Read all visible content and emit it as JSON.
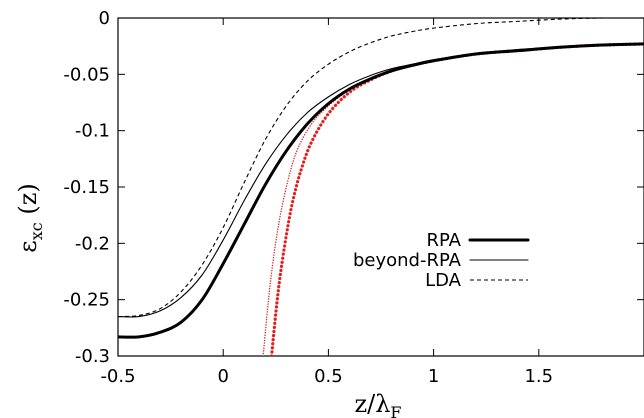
{
  "chart_data": {
    "type": "line",
    "xlabel": {
      "main": "z/λ",
      "sub": "F"
    },
    "ylabel": {
      "main": "ε",
      "sub": "xc",
      "suffix": " (z)"
    },
    "xlim": [
      -0.5,
      2.0
    ],
    "ylim": [
      -0.3,
      0.0
    ],
    "x_ticks": [
      -0.5,
      0,
      0.5,
      1,
      1.5
    ],
    "x_tick_labels": [
      "-0.5",
      "0",
      "0.5",
      "1",
      "1.5"
    ],
    "y_ticks": [
      0,
      -0.05,
      -0.1,
      -0.15,
      -0.2,
      -0.25,
      -0.3
    ],
    "y_tick_labels": [
      "0",
      "-0.05",
      "-0.1",
      "-0.15",
      "-0.2",
      "-0.25",
      "-0.3"
    ],
    "grid": false,
    "legend_position": "middle-right",
    "legend": [
      "RPA",
      "beyond-RPA",
      "LDA"
    ],
    "series": [
      {
        "name": "RPA",
        "style": "solid-thick",
        "color": "#000000",
        "x": [
          -0.5,
          -0.4,
          -0.3,
          -0.2,
          -0.1,
          0.0,
          0.1,
          0.2,
          0.3,
          0.4,
          0.5,
          0.6,
          0.7,
          0.8,
          0.9,
          1.0,
          1.2,
          1.4,
          1.6,
          1.8,
          2.0
        ],
        "y": [
          -0.283,
          -0.283,
          -0.279,
          -0.27,
          -0.25,
          -0.218,
          -0.183,
          -0.148,
          -0.118,
          -0.094,
          -0.076,
          -0.063,
          -0.054,
          -0.047,
          -0.042,
          -0.038,
          -0.032,
          -0.029,
          -0.026,
          -0.024,
          -0.023
        ]
      },
      {
        "name": "beyond-RPA",
        "style": "solid-thin",
        "color": "#000000",
        "x": [
          -0.5,
          -0.4,
          -0.3,
          -0.2,
          -0.1,
          0.0,
          0.1,
          0.2,
          0.3,
          0.4,
          0.5,
          0.6,
          0.7,
          0.8,
          0.9,
          1.0,
          1.2,
          1.4,
          1.6,
          1.8,
          2.0
        ],
        "y": [
          -0.265,
          -0.265,
          -0.26,
          -0.248,
          -0.228,
          -0.197,
          -0.162,
          -0.13,
          -0.104,
          -0.084,
          -0.07,
          -0.059,
          -0.051,
          -0.045,
          -0.041,
          -0.037,
          -0.032,
          -0.028,
          -0.026,
          -0.024,
          -0.023
        ]
      },
      {
        "name": "LDA",
        "style": "dashed",
        "color": "#000000",
        "x": [
          -0.5,
          -0.4,
          -0.3,
          -0.2,
          -0.1,
          0.0,
          0.1,
          0.2,
          0.3,
          0.4,
          0.5,
          0.6,
          0.7,
          0.8,
          0.9,
          1.0,
          1.2,
          1.4,
          1.6,
          1.8,
          2.0
        ],
        "y": [
          -0.265,
          -0.264,
          -0.258,
          -0.243,
          -0.219,
          -0.186,
          -0.146,
          -0.108,
          -0.078,
          -0.056,
          -0.041,
          -0.03,
          -0.022,
          -0.016,
          -0.012,
          -0.009,
          -0.005,
          -0.003,
          -0.001,
          0.0,
          0.0
        ]
      },
      {
        "name": "",
        "style": "dotted-thick",
        "color": "#e02020",
        "x": [
          0.23,
          0.25,
          0.27,
          0.3,
          0.33,
          0.37,
          0.42,
          0.5,
          0.6,
          0.7,
          0.8,
          0.9,
          1.0,
          1.2,
          1.4,
          1.6,
          1.8,
          2.0
        ],
        "y": [
          -0.3,
          -0.262,
          -0.23,
          -0.193,
          -0.163,
          -0.135,
          -0.11,
          -0.085,
          -0.066,
          -0.055,
          -0.047,
          -0.042,
          -0.038,
          -0.032,
          -0.029,
          -0.026,
          -0.024,
          -0.023
        ]
      },
      {
        "name": "",
        "style": "dotted-thin",
        "color": "#e02020",
        "x": [
          0.19,
          0.21,
          0.23,
          0.26,
          0.3,
          0.35,
          0.42,
          0.5,
          0.6,
          0.7,
          0.8,
          0.9,
          1.0,
          1.2,
          1.4,
          1.6,
          1.8,
          2.0
        ],
        "y": [
          -0.3,
          -0.26,
          -0.226,
          -0.187,
          -0.15,
          -0.118,
          -0.094,
          -0.078,
          -0.064,
          -0.054,
          -0.047,
          -0.042,
          -0.038,
          -0.032,
          -0.029,
          -0.026,
          -0.024,
          -0.023
        ]
      }
    ]
  }
}
